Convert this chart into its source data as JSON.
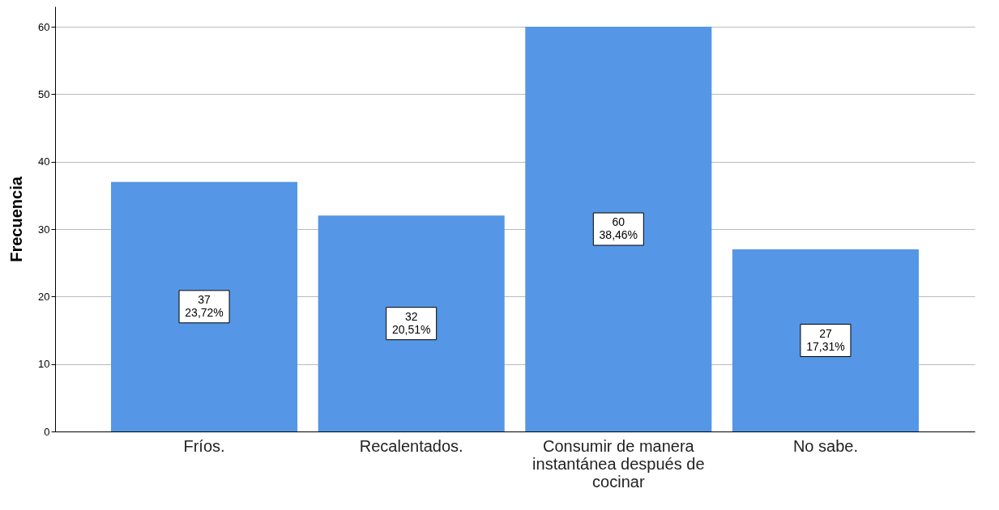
{
  "chart_data": {
    "type": "bar",
    "ylabel": "Frecuencia",
    "categories": [
      "Fríos.",
      "Recalentados.",
      "Consumir de manera instantánea después de cocinar",
      "No sabe."
    ],
    "values": [
      37,
      32,
      60,
      27
    ],
    "color": "#5596e6",
    "value_labels": [
      "37\n23,72%",
      "32\n20,51%",
      "60\n38,46%",
      "27\n17,31%"
    ],
    "ylim": [
      0,
      63
    ],
    "yticks": [
      0,
      10,
      20,
      30,
      40,
      50,
      60
    ],
    "grid": "y"
  }
}
